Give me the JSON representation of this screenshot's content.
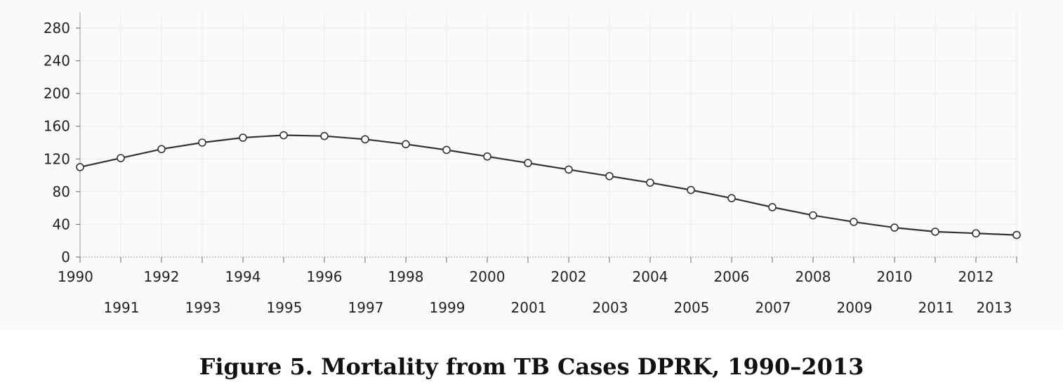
{
  "caption": "Figure 5. Mortality from TB Cases DPRK, 1990–2013",
  "chart_data": {
    "type": "line",
    "title": "",
    "xlabel": "",
    "ylabel": "",
    "x": [
      1990,
      1991,
      1992,
      1993,
      1994,
      1995,
      1996,
      1997,
      1998,
      1999,
      2000,
      2001,
      2002,
      2003,
      2004,
      2005,
      2006,
      2007,
      2008,
      2009,
      2010,
      2011,
      2012,
      2013
    ],
    "series": [
      {
        "values": [
          110,
          121,
          132,
          140,
          146,
          149,
          148,
          144,
          138,
          131,
          123,
          115,
          107,
          99,
          91,
          82,
          72,
          61,
          51,
          43,
          36,
          31,
          29,
          27
        ]
      }
    ],
    "ylim": [
      0,
      280
    ],
    "yticks": [
      0,
      40,
      80,
      120,
      160,
      200,
      240,
      280
    ],
    "ytick_labels": [
      "0",
      "40",
      "80",
      "120",
      "160",
      "200",
      "240",
      "280"
    ],
    "xtick_labels": [
      "1990",
      "1991",
      "1992",
      "1993",
      "1994",
      "1995",
      "1996",
      "1997",
      "1998",
      "1999",
      "2000",
      "2001",
      "2002",
      "2003",
      "2004",
      "2005",
      "2006",
      "2007",
      "2008",
      "2009",
      "2010",
      "2011",
      "2012",
      "2013"
    ],
    "grid": true,
    "legend": "none",
    "colors": {
      "line": "#333333",
      "marker_fill": "#ffffff",
      "marker_stroke": "#333333",
      "grid": "#ececec",
      "axis": "#999999"
    }
  }
}
